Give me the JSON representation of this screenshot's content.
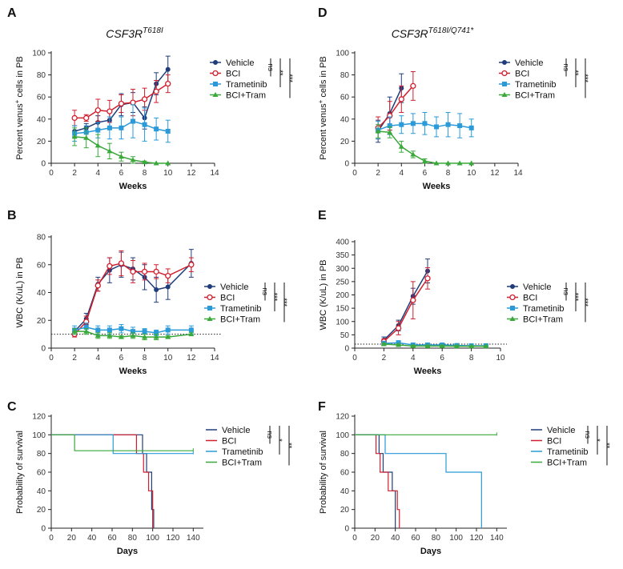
{
  "colors": {
    "vehicle": "#1f3d7a",
    "bci": "#d11f2e",
    "trametinib": "#2a9ad8",
    "bci_tram": "#3aa83a"
  },
  "chart_data": [
    {
      "panel": "A",
      "type": "line",
      "title": "CSF3R",
      "title_sup": "T618I",
      "xlabel": "Weeks",
      "ylabel": "Percent venus+ cells in PB",
      "xlim": [
        0,
        14
      ],
      "ylim": [
        0,
        100
      ],
      "xticks": [
        "0",
        "2",
        "4",
        "6",
        "8",
        "10",
        "12",
        "14"
      ],
      "yticks": [
        "0",
        "20",
        "40",
        "60",
        "80",
        "100"
      ],
      "legend": [
        "Vehicle",
        "BCI",
        "Trametinib",
        "BCI+Tram"
      ],
      "significance": [
        "ns",
        "**",
        "***"
      ],
      "series": [
        {
          "name": "Vehicle",
          "x": [
            2,
            3,
            4,
            5,
            6,
            7,
            8,
            9,
            10
          ],
          "y": [
            29,
            32,
            37,
            39,
            53,
            55,
            41,
            72,
            85
          ],
          "err": [
            5,
            4,
            6,
            8,
            10,
            9,
            10,
            10,
            12
          ]
        },
        {
          "name": "BCI",
          "x": [
            2,
            3,
            4,
            5,
            6,
            7,
            8,
            9,
            10
          ],
          "y": [
            41,
            41,
            48,
            47,
            54,
            55,
            58,
            65,
            72
          ],
          "err": [
            7,
            3,
            10,
            10,
            8,
            12,
            10,
            10,
            8
          ]
        },
        {
          "name": "Trametinib",
          "x": [
            2,
            3,
            4,
            5,
            6,
            7,
            8,
            9,
            10
          ],
          "y": [
            27,
            28,
            30,
            32,
            32,
            38,
            35,
            31,
            29
          ],
          "err": [
            7,
            6,
            7,
            10,
            10,
            15,
            15,
            10,
            10
          ]
        },
        {
          "name": "BCI+Tram",
          "x": [
            2,
            3,
            4,
            5,
            6,
            7,
            8,
            9,
            10
          ],
          "y": [
            24,
            23,
            16,
            11,
            6,
            3,
            1,
            0,
            0
          ],
          "err": [
            8,
            9,
            10,
            7,
            4,
            3,
            1,
            0,
            0
          ]
        }
      ]
    },
    {
      "panel": "D",
      "type": "line",
      "title": "CSF3R",
      "title_sup": "T618I/Q741*",
      "xlabel": "Weeks",
      "ylabel": "Percent venus+ cells in PB",
      "xlim": [
        0,
        14
      ],
      "ylim": [
        0,
        100
      ],
      "xticks": [
        "0",
        "2",
        "4",
        "6",
        "8",
        "10",
        "12",
        "14"
      ],
      "yticks": [
        "0",
        "20",
        "40",
        "60",
        "80",
        "100"
      ],
      "legend": [
        "Vehicle",
        "BCI",
        "Trametinib",
        "BCI+Tram"
      ],
      "significance": [
        "ns",
        "**",
        "***"
      ],
      "series": [
        {
          "name": "Vehicle",
          "x": [
            2,
            3,
            4
          ],
          "y": [
            29,
            45,
            68
          ],
          "err": [
            10,
            15,
            13
          ]
        },
        {
          "name": "BCI",
          "x": [
            2,
            3,
            4,
            5
          ],
          "y": [
            32,
            43,
            58,
            70
          ],
          "err": [
            10,
            13,
            12,
            13
          ]
        },
        {
          "name": "Trametinib",
          "x": [
            2,
            3,
            4,
            5,
            6,
            7,
            8,
            9,
            10
          ],
          "y": [
            30,
            34,
            35,
            36,
            36,
            33,
            35,
            34,
            32
          ],
          "err": [
            8,
            8,
            8,
            9,
            10,
            9,
            11,
            11,
            8
          ]
        },
        {
          "name": "BCI+Tram",
          "x": [
            2,
            3,
            4,
            5,
            6,
            7,
            8,
            9,
            10
          ],
          "y": [
            29,
            28,
            15,
            8,
            2,
            0,
            0,
            0,
            0
          ],
          "err": [
            6,
            5,
            5,
            3,
            2,
            0,
            0,
            0,
            0
          ]
        }
      ]
    },
    {
      "panel": "B",
      "type": "line",
      "xlabel": "Weeks",
      "ylabel": "WBC (K/uL) in PB",
      "xlim": [
        0,
        14
      ],
      "ylim": [
        0,
        80
      ],
      "reference_line": 10,
      "xticks": [
        "0",
        "2",
        "4",
        "6",
        "8",
        "10",
        "12",
        "14"
      ],
      "yticks": [
        "0",
        "20",
        "40",
        "60",
        "80"
      ],
      "legend": [
        "Vehicle",
        "BCI",
        "Trametinib",
        "BCI+Tram"
      ],
      "significance": [
        "ns",
        "***",
        "***"
      ],
      "series": [
        {
          "name": "Vehicle",
          "x": [
            2,
            3,
            4,
            5,
            6,
            7,
            8,
            9,
            10,
            12
          ],
          "y": [
            12,
            21,
            46,
            56,
            60,
            57,
            51,
            42,
            44,
            61
          ],
          "err": [
            2,
            4,
            5,
            9,
            9,
            8,
            9,
            9,
            9,
            10
          ]
        },
        {
          "name": "BCI",
          "x": [
            2,
            3,
            4,
            5,
            6,
            7,
            8,
            9,
            10,
            12
          ],
          "y": [
            10,
            19,
            45,
            59,
            61,
            55,
            55,
            55,
            52,
            60
          ],
          "err": [
            2,
            4,
            4,
            6,
            9,
            8,
            6,
            5,
            5,
            5
          ]
        },
        {
          "name": "Trametinib",
          "x": [
            2,
            3,
            4,
            5,
            6,
            7,
            8,
            9,
            10,
            12
          ],
          "y": [
            13,
            15,
            13,
            13,
            14,
            12,
            12,
            11,
            13,
            13
          ],
          "err": [
            3,
            3,
            3,
            3,
            3,
            3,
            2,
            2,
            3,
            3
          ]
        },
        {
          "name": "BCI+Tram",
          "x": [
            2,
            3,
            4,
            5,
            6,
            7,
            8,
            9,
            10,
            12
          ],
          "y": [
            12,
            12,
            9,
            9,
            8,
            9,
            8,
            8,
            8,
            10
          ],
          "err": [
            2,
            2,
            2,
            2,
            1,
            2,
            2,
            2,
            1,
            1
          ]
        }
      ]
    },
    {
      "panel": "E",
      "type": "line",
      "xlabel": "Weeks",
      "ylabel": "WBC (K/uL) in PB",
      "xlim": [
        0,
        10
      ],
      "ylim": [
        0,
        400
      ],
      "reference_line": 15,
      "xticks": [
        "0",
        "2",
        "4",
        "6",
        "8",
        "10"
      ],
      "yticks": [
        "0",
        "50",
        "100",
        "150",
        "200",
        "250",
        "300",
        "350",
        "400"
      ],
      "legend": [
        "Vehicle",
        "BCI",
        "Trametinib",
        "BCI+Tram"
      ],
      "significance": [
        "ns",
        "***",
        "***"
      ],
      "series": [
        {
          "name": "Vehicle",
          "x": [
            2,
            3,
            4,
            5
          ],
          "y": [
            30,
            85,
            195,
            290
          ],
          "err": [
            12,
            20,
            30,
            45
          ]
        },
        {
          "name": "BCI",
          "x": [
            2,
            3,
            4,
            5
          ],
          "y": [
            25,
            75,
            180,
            262
          ],
          "err": [
            10,
            25,
            70,
            40
          ]
        },
        {
          "name": "Trametinib",
          "x": [
            2,
            3,
            4,
            5,
            6,
            7,
            8,
            9
          ],
          "y": [
            18,
            20,
            12,
            12,
            12,
            10,
            9,
            9
          ],
          "err": [
            8,
            8,
            5,
            5,
            5,
            4,
            4,
            4
          ]
        },
        {
          "name": "BCI+Tram",
          "x": [
            2,
            3,
            4,
            5,
            6,
            7,
            8,
            9
          ],
          "y": [
            15,
            12,
            8,
            8,
            8,
            7,
            7,
            7
          ],
          "err": [
            4,
            4,
            3,
            3,
            3,
            3,
            2,
            2
          ]
        }
      ]
    },
    {
      "panel": "C",
      "type": "line",
      "subtype": "survival",
      "xlabel": "Days",
      "ylabel": "Probability of survival",
      "xlim": [
        0,
        150
      ],
      "ylim": [
        0,
        120
      ],
      "xticks": [
        "0",
        "20",
        "40",
        "60",
        "80",
        "100",
        "120",
        "140"
      ],
      "yticks": [
        "0",
        "20",
        "40",
        "60",
        "80",
        "100",
        "120"
      ],
      "legend": [
        "Vehicle",
        "BCI",
        "Trametinib",
        "BCI+Tram"
      ],
      "significance": [
        "ns",
        "*",
        "**"
      ],
      "series": [
        {
          "name": "Vehicle",
          "steps": [
            [
              0,
              100
            ],
            [
              90,
              100
            ],
            [
              90,
              80
            ],
            [
              94,
              80
            ],
            [
              94,
              60
            ],
            [
              99,
              60
            ],
            [
              99,
              20
            ],
            [
              101,
              20
            ],
            [
              101,
              0
            ]
          ]
        },
        {
          "name": "BCI",
          "steps": [
            [
              0,
              100
            ],
            [
              84,
              100
            ],
            [
              84,
              80
            ],
            [
              91,
              80
            ],
            [
              91,
              60
            ],
            [
              96,
              60
            ],
            [
              96,
              40
            ],
            [
              100,
              40
            ],
            [
              100,
              0
            ]
          ]
        },
        {
          "name": "Trametinib",
          "steps": [
            [
              0,
              100
            ],
            [
              61,
              100
            ],
            [
              61,
              80
            ],
            [
              140,
              80
            ]
          ]
        },
        {
          "name": "BCI+Tram",
          "steps": [
            [
              0,
              100
            ],
            [
              23,
              100
            ],
            [
              23,
              83
            ],
            [
              140,
              83
            ]
          ]
        }
      ]
    },
    {
      "panel": "F",
      "type": "line",
      "subtype": "survival",
      "xlabel": "Days",
      "ylabel": "Probability of survival",
      "xlim": [
        0,
        150
      ],
      "ylim": [
        0,
        120
      ],
      "xticks": [
        "0",
        "20",
        "40",
        "60",
        "80",
        "100",
        "120",
        "140"
      ],
      "yticks": [
        "0",
        "20",
        "40",
        "60",
        "80",
        "100",
        "120"
      ],
      "legend": [
        "Vehicle",
        "BCI",
        "Trametinib",
        "BCI+Tram"
      ],
      "significance": [
        "ns",
        "*",
        "**"
      ],
      "series": [
        {
          "name": "Vehicle",
          "steps": [
            [
              0,
              100
            ],
            [
              24,
              100
            ],
            [
              24,
              80
            ],
            [
              28,
              80
            ],
            [
              28,
              60
            ],
            [
              37,
              60
            ],
            [
              37,
              40
            ],
            [
              40,
              40
            ],
            [
              40,
              0
            ]
          ]
        },
        {
          "name": "BCI",
          "steps": [
            [
              0,
              100
            ],
            [
              21,
              100
            ],
            [
              21,
              80
            ],
            [
              25,
              80
            ],
            [
              25,
              60
            ],
            [
              33,
              60
            ],
            [
              33,
              40
            ],
            [
              42,
              40
            ],
            [
              42,
              20
            ],
            [
              44,
              20
            ],
            [
              44,
              0
            ]
          ]
        },
        {
          "name": "Trametinib",
          "steps": [
            [
              0,
              100
            ],
            [
              30,
              100
            ],
            [
              30,
              80
            ],
            [
              90,
              80
            ],
            [
              90,
              60
            ],
            [
              125,
              60
            ],
            [
              125,
              0
            ]
          ]
        },
        {
          "name": "BCI+Tram",
          "steps": [
            [
              0,
              100
            ],
            [
              140,
              100
            ]
          ]
        }
      ]
    }
  ]
}
